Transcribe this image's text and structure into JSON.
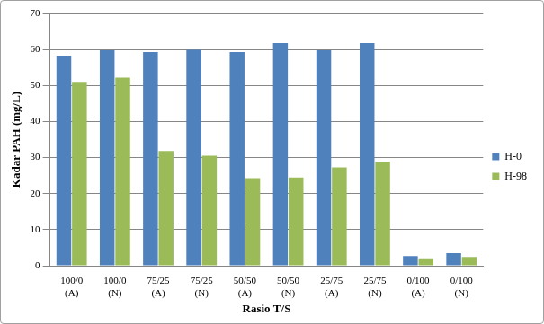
{
  "chart_data": {
    "type": "bar",
    "x_label": "Rasio T/S",
    "y_label": "Kadar PAH (mg/L)",
    "categories": [
      [
        "100/0",
        "(A)"
      ],
      [
        "100/0",
        "(N)"
      ],
      [
        "75/25",
        "(A)"
      ],
      [
        "75/25",
        "(N)"
      ],
      [
        "50/50",
        "(A)"
      ],
      [
        "50/50",
        "(N)"
      ],
      [
        "25/75",
        "(A)"
      ],
      [
        "25/75",
        "(N)"
      ],
      [
        "0/100",
        "(A)"
      ],
      [
        "0/100",
        "(N)"
      ]
    ],
    "series": [
      {
        "name": "H-0",
        "color": "#4f81bd",
        "values": [
          58.3,
          59.8,
          59.3,
          59.9,
          59.3,
          61.8,
          59.8,
          61.8,
          2.7,
          3.5
        ]
      },
      {
        "name": "H-98",
        "color": "#9bbb59",
        "values": [
          51.0,
          52.2,
          31.8,
          30.5,
          24.3,
          24.5,
          27.3,
          28.9,
          1.8,
          2.4
        ]
      }
    ],
    "ylim": [
      0,
      70
    ],
    "yticks": [
      0,
      10,
      20,
      30,
      40,
      50,
      60,
      70
    ],
    "grid": true,
    "legend": "right"
  }
}
